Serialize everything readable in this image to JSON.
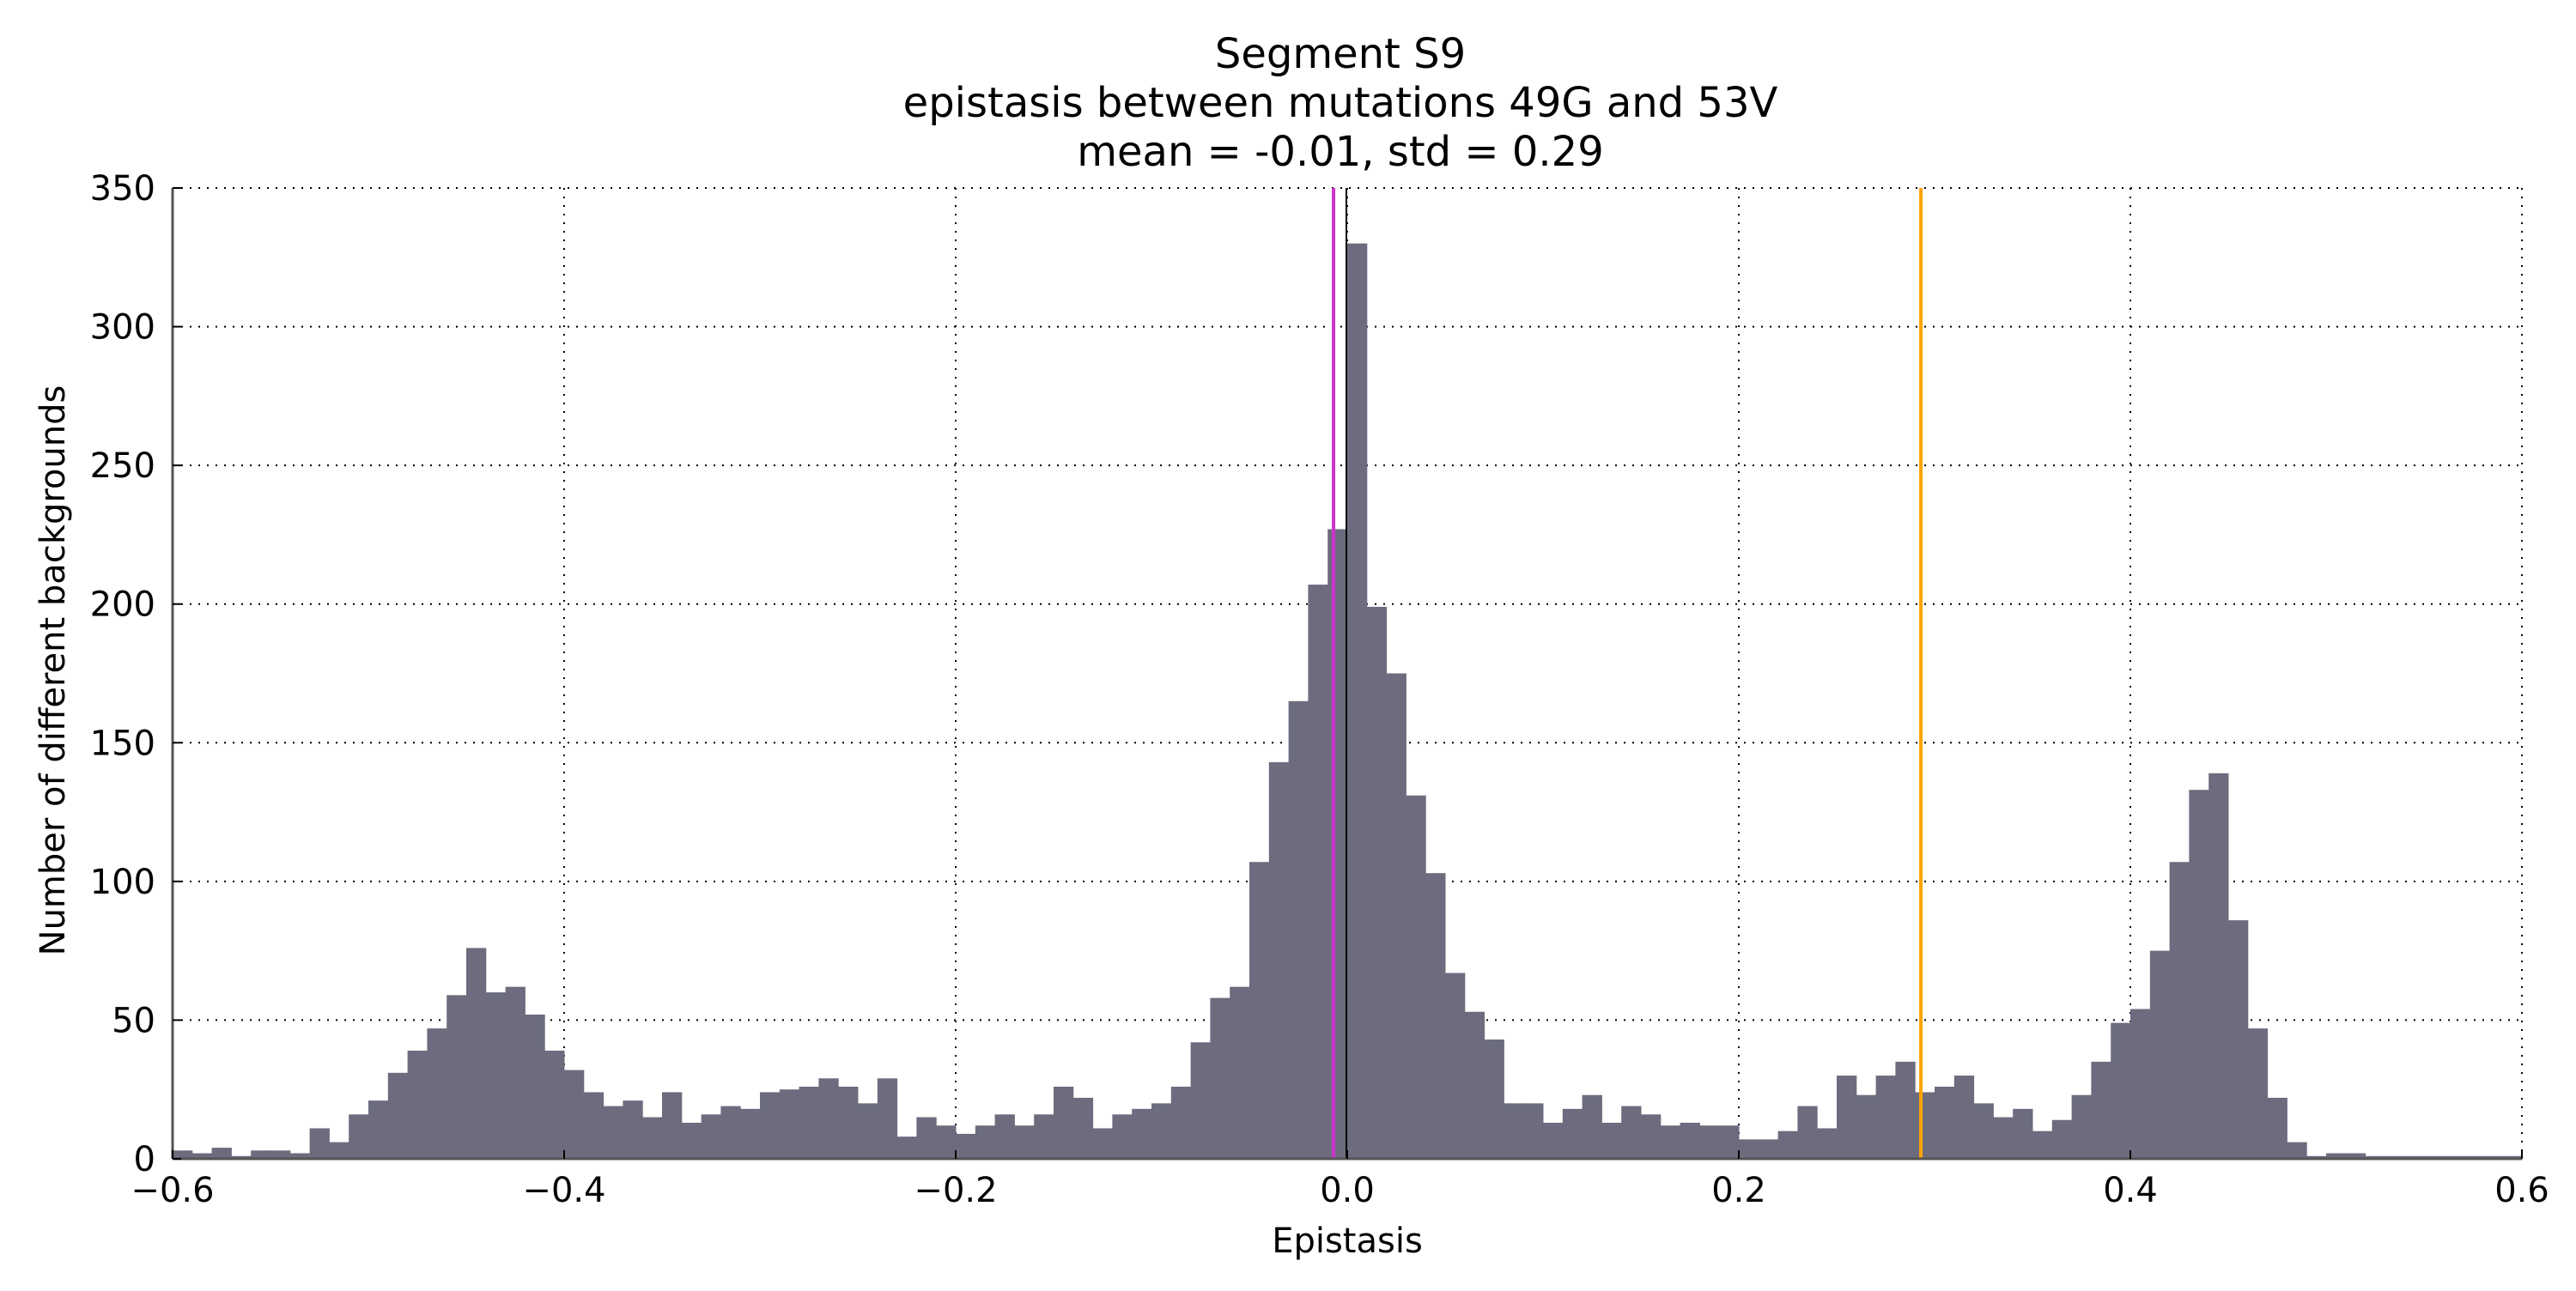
{
  "chart_data": {
    "type": "bar",
    "title": [
      "Segment S9",
      "epistasis between mutations 49G and 53V",
      "mean = -0.01, std = 0.29"
    ],
    "xlabel": "Epistasis",
    "ylabel": "Number of different backgrounds",
    "xlim": [
      -0.6,
      0.6
    ],
    "ylim": [
      0,
      350
    ],
    "xticks": [
      -0.6,
      -0.4,
      -0.2,
      0.0,
      0.2,
      0.4,
      0.6
    ],
    "xtick_labels": [
      "−0.6",
      "−0.4",
      "−0.2",
      "0.0",
      "0.2",
      "0.4",
      "0.6"
    ],
    "yticks": [
      0,
      50,
      100,
      150,
      200,
      250,
      300,
      350
    ],
    "ytick_labels": [
      "0",
      "50",
      "100",
      "150",
      "200",
      "250",
      "300",
      "350"
    ],
    "grid": true,
    "grid_style": "dotted",
    "bin_width": 0.01,
    "bin_start": -0.6,
    "bar_color": "#6c6c7e",
    "values": [
      3,
      2,
      4,
      1,
      3,
      3,
      2,
      11,
      6,
      16,
      21,
      31,
      39,
      47,
      59,
      76,
      60,
      62,
      52,
      39,
      32,
      24,
      19,
      21,
      15,
      24,
      13,
      16,
      19,
      18,
      24,
      25,
      26,
      29,
      26,
      20,
      29,
      8,
      15,
      12,
      9,
      12,
      16,
      12,
      16,
      26,
      22,
      11,
      16,
      18,
      20,
      26,
      42,
      58,
      62,
      107,
      143,
      165,
      207,
      227,
      330,
      199,
      175,
      131,
      103,
      67,
      53,
      43,
      20,
      20,
      13,
      18,
      23,
      13,
      19,
      16,
      12,
      13,
      12,
      12,
      7,
      7,
      10,
      19,
      11,
      30,
      23,
      30,
      35,
      24,
      26,
      30,
      20,
      15,
      18,
      10,
      14,
      23,
      35,
      49,
      54,
      75,
      107,
      133,
      139,
      86,
      47,
      22,
      6,
      1,
      2,
      2,
      1,
      1,
      1,
      1,
      1,
      1,
      1,
      1
    ],
    "reference_lines": [
      {
        "x": -0.007,
        "color": "#cc33cc"
      },
      {
        "x": 0.293,
        "color": "#ffa200"
      }
    ],
    "mean_line": {
      "x": -0.01,
      "color": "#000000"
    }
  }
}
